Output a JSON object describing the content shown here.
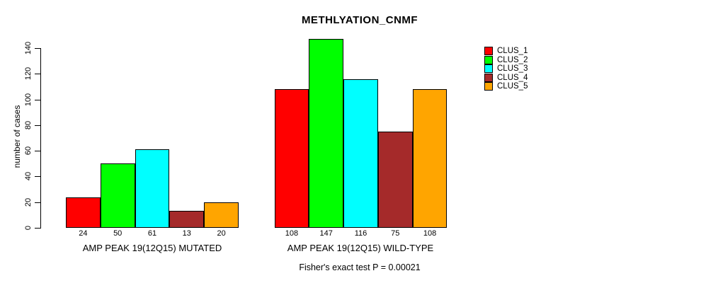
{
  "chart_data": {
    "type": "bar",
    "title": "METHLYATION_CNMF",
    "ylabel": "number of cases",
    "xlabel": "",
    "ylim": [
      0,
      140
    ],
    "yticks": [
      0,
      20,
      40,
      60,
      80,
      100,
      120,
      140
    ],
    "grid": false,
    "legend_position": "top-right",
    "categories": [
      "AMP PEAK 19(12Q15) MUTATED",
      "AMP PEAK 19(12Q15) WILD-TYPE"
    ],
    "series": [
      {
        "name": "CLUS_1",
        "color": "#FF0000",
        "values": [
          24,
          108
        ]
      },
      {
        "name": "CLUS_2",
        "color": "#00FF00",
        "values": [
          50,
          147
        ]
      },
      {
        "name": "CLUS_3",
        "color": "#00FFFF",
        "values": [
          61,
          116
        ]
      },
      {
        "name": "CLUS_4",
        "color": "#A52A2A",
        "values": [
          13,
          75
        ]
      },
      {
        "name": "CLUS_5",
        "color": "#FFA500",
        "values": [
          20,
          108
        ]
      }
    ],
    "bar_value_labels_shown": true,
    "annotation": "Fisher's exact test P = 0.00021"
  }
}
